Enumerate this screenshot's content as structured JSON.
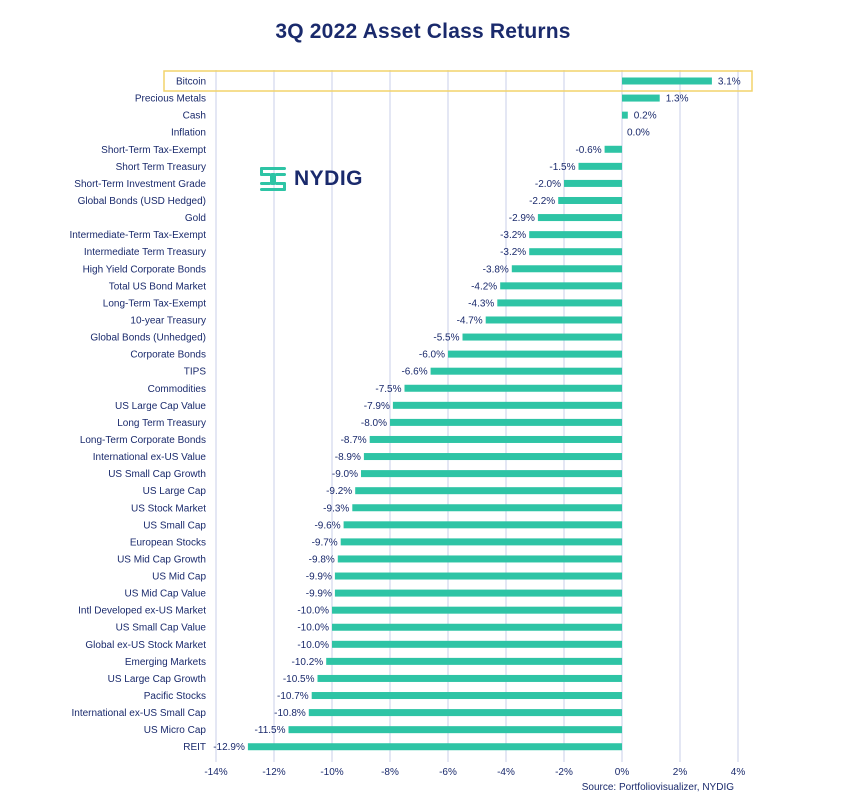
{
  "title": "3Q 2022 Asset Class Returns",
  "source": "Source: Portfoliovisualizer, NYDIG",
  "logo_text": "NYDIG",
  "colors": {
    "bar": "#2ec4a5",
    "text": "#1a2a6c",
    "grid": "#c9cfea",
    "highlight": "#f2d36b"
  },
  "chart_data": {
    "type": "bar",
    "orientation": "horizontal",
    "title": "3Q 2022 Asset Class Returns",
    "categories": [
      "Bitcoin",
      "Precious Metals",
      "Cash",
      "Inflation",
      "Short-Term Tax-Exempt",
      "Short Term Treasury",
      "Short-Term Investment Grade",
      "Global Bonds (USD Hedged)",
      "Gold",
      "Intermediate-Term Tax-Exempt",
      "Intermediate Term Treasury",
      "High Yield Corporate Bonds",
      "Total US Bond Market",
      "Long-Term Tax-Exempt",
      "10-year Treasury",
      "Global Bonds (Unhedged)",
      "Corporate Bonds",
      "TIPS",
      "Commodities",
      "US Large Cap Value",
      "Long Term Treasury",
      "Long-Term Corporate Bonds",
      "International ex-US Value",
      "US Small Cap Growth",
      "US Large Cap",
      "US Stock Market",
      "US Small Cap",
      "European Stocks",
      "US Mid Cap Growth",
      "US Mid Cap",
      "US Mid Cap Value",
      "Intl Developed ex-US Market",
      "US Small Cap Value",
      "Global ex-US Stock Market",
      "Emerging Markets",
      "US Large Cap Growth",
      "Pacific Stocks",
      "International ex-US Small Cap",
      "US Micro Cap",
      "REIT"
    ],
    "values": [
      3.1,
      1.3,
      0.2,
      0.0,
      -0.6,
      -1.5,
      -2.0,
      -2.2,
      -2.9,
      -3.2,
      -3.2,
      -3.8,
      -4.2,
      -4.3,
      -4.7,
      -5.5,
      -6.0,
      -6.6,
      -7.5,
      -7.9,
      -8.0,
      -8.7,
      -8.9,
      -9.0,
      -9.2,
      -9.3,
      -9.6,
      -9.7,
      -9.8,
      -9.9,
      -9.9,
      -10.0,
      -10.0,
      -10.0,
      -10.2,
      -10.5,
      -10.7,
      -10.8,
      -11.5,
      -12.9
    ],
    "value_labels": [
      "3.1%",
      "1.3%",
      "0.2%",
      "0.0%",
      "-0.6%",
      "-1.5%",
      "-2.0%",
      "-2.2%",
      "-2.9%",
      "-3.2%",
      "-3.2%",
      "-3.8%",
      "-4.2%",
      "-4.3%",
      "-4.7%",
      "-5.5%",
      "-6.0%",
      "-6.6%",
      "-7.5%",
      "-7.9%",
      "-8.0%",
      "-8.7%",
      "-8.9%",
      "-9.0%",
      "-9.2%",
      "-9.3%",
      "-9.6%",
      "-9.7%",
      "-9.8%",
      "-9.9%",
      "-9.9%",
      "-10.0%",
      "-10.0%",
      "-10.0%",
      "-10.2%",
      "-10.5%",
      "-10.7%",
      "-10.8%",
      "-11.5%",
      "-12.9%"
    ],
    "xlim": [
      -14,
      4
    ],
    "x_ticks": [
      -14,
      -12,
      -10,
      -8,
      -6,
      -4,
      -2,
      0,
      2,
      4
    ],
    "x_tick_labels": [
      "-14%",
      "-12%",
      "-10%",
      "-8%",
      "-6%",
      "-4%",
      "-2%",
      "0%",
      "2%",
      "4%"
    ],
    "highlighted_category": "Bitcoin",
    "grid": true,
    "xlabel": "",
    "ylabel": ""
  }
}
